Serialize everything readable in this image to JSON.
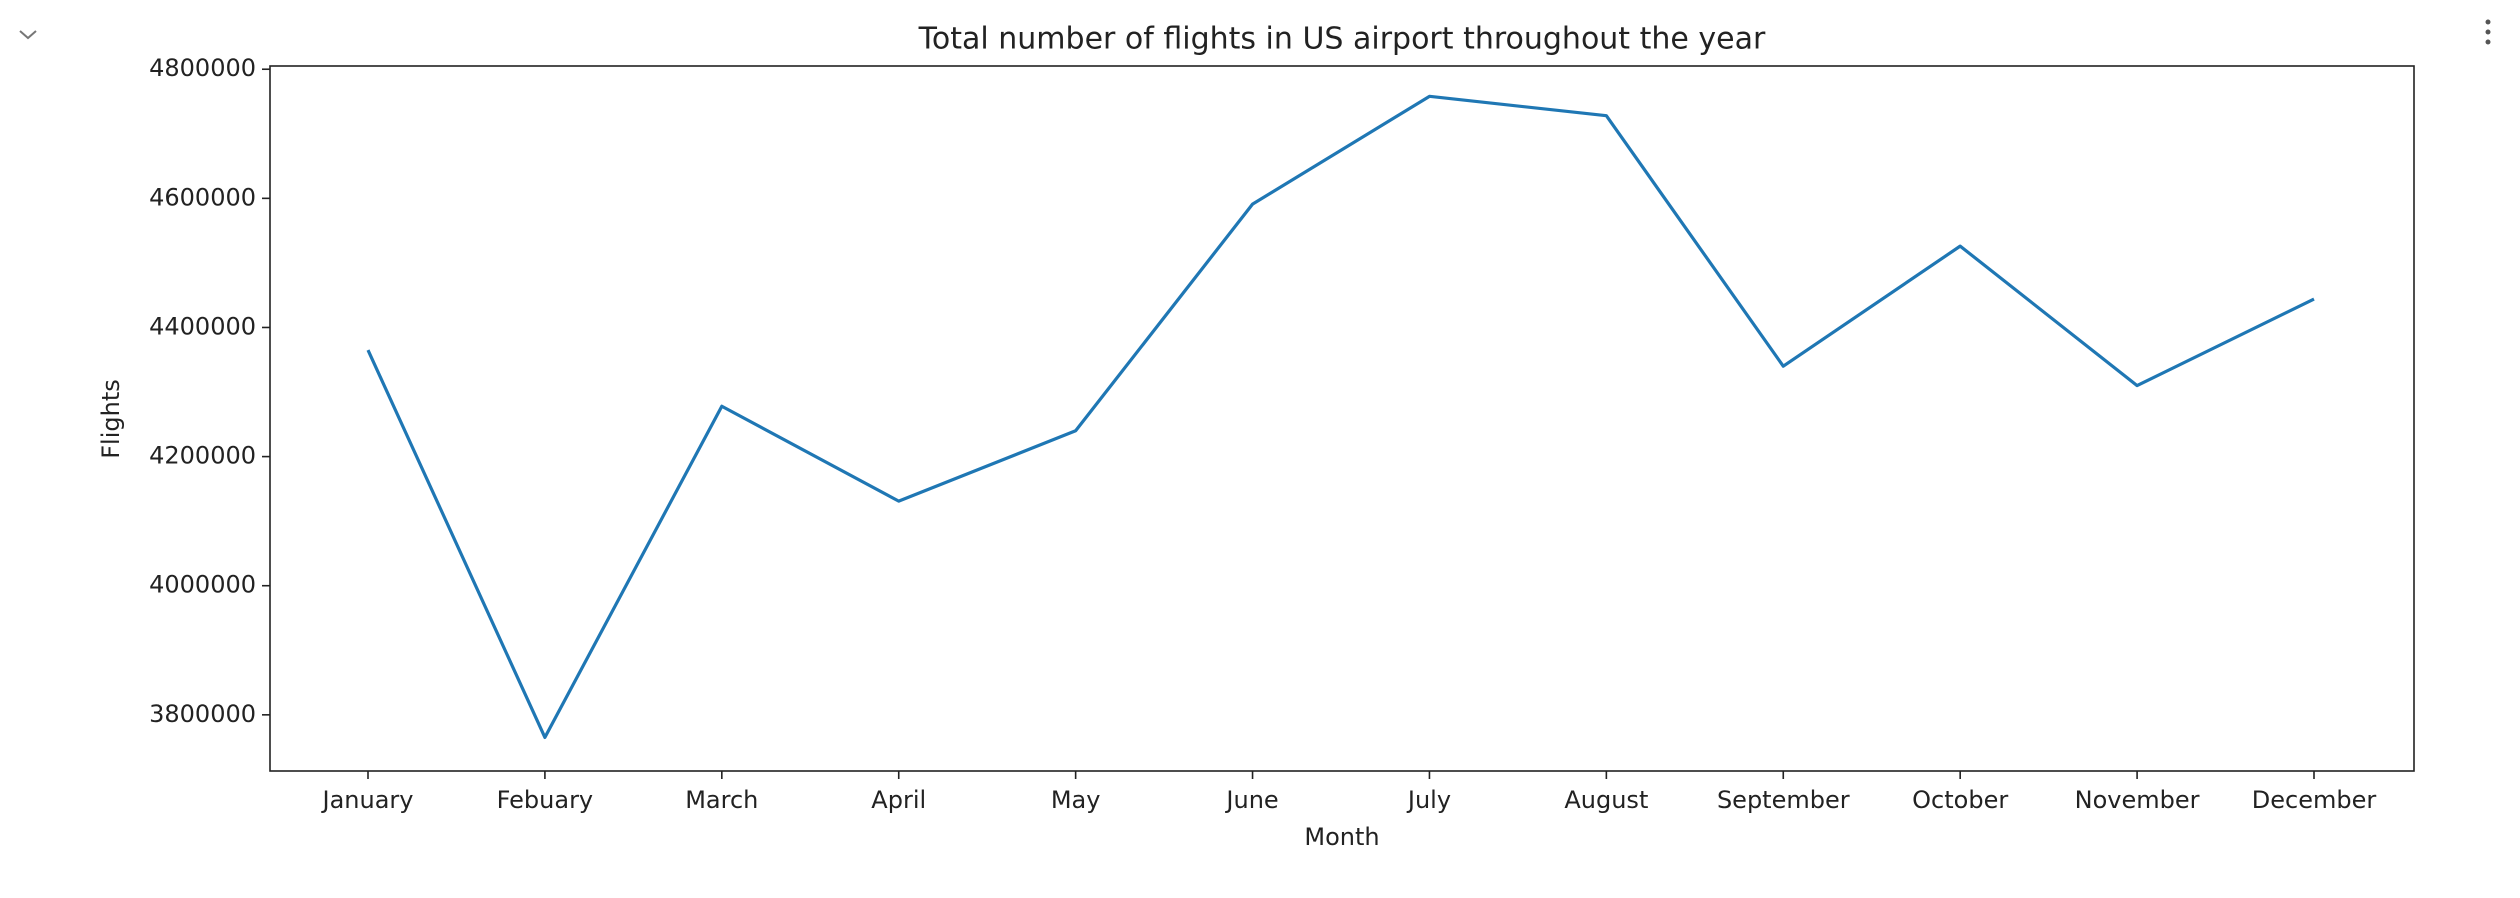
{
  "chart_data": {
    "type": "line",
    "title": "Total number of flights in US airport throughout the year",
    "x_label": "Month",
    "y_label": "Flights",
    "categories": [
      "January",
      "Febuary",
      "March",
      "April",
      "May",
      "June",
      "July",
      "August",
      "September",
      "October",
      "November",
      "December"
    ],
    "series": [
      {
        "name": "Flights",
        "color": "#1f77b4",
        "values": [
          4365000,
          3765000,
          4278000,
          4131000,
          4240000,
          4591000,
          4758000,
          4728000,
          4340000,
          4526000,
          4310000,
          4444000
        ]
      }
    ],
    "ylim": [
      3713000,
      4805000
    ],
    "yticks": [
      3800000,
      4000000,
      4200000,
      4400000,
      4600000,
      4800000
    ],
    "grid": false
  }
}
